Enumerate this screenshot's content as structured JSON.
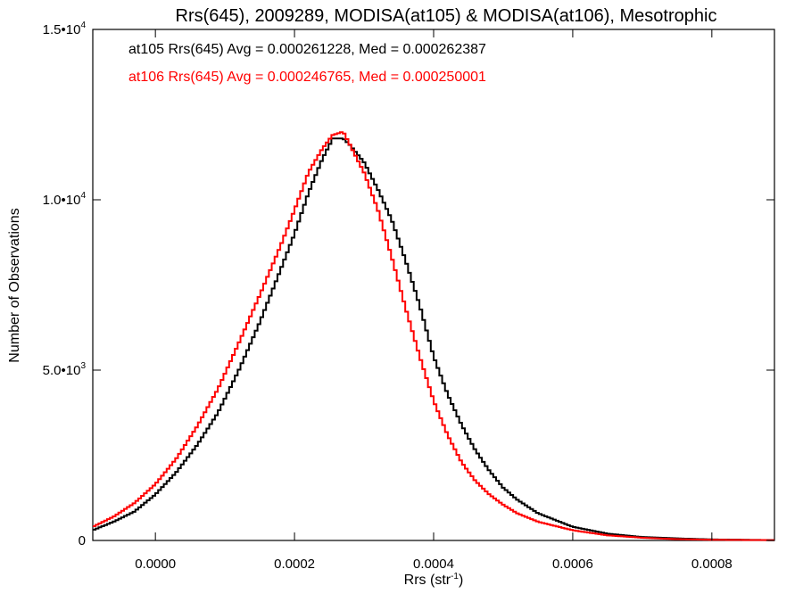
{
  "chart_data": {
    "type": "line",
    "title": "Rrs(645), 2009289, MODISA(at105) & MODISA(at106), Mesotrophic",
    "xlabel": {
      "base": "Rrs (str",
      "sup": "-1",
      "close": ")"
    },
    "ylabel": "Number of Observations",
    "xlim": [
      -9e-05,
      0.00089
    ],
    "ylim": [
      0,
      15000
    ],
    "x_ticks": [
      {
        "value": 0.0,
        "label": "0.0000"
      },
      {
        "value": 0.0002,
        "label": "0.0002"
      },
      {
        "value": 0.0004,
        "label": "0.0004"
      },
      {
        "value": 0.0006,
        "label": "0.0006"
      },
      {
        "value": 0.0008,
        "label": "0.0008"
      }
    ],
    "y_ticks": [
      {
        "value": 0,
        "base": "0",
        "sup": ""
      },
      {
        "value": 5000,
        "base": "5.0•10",
        "sup": "3"
      },
      {
        "value": 10000,
        "base": "1.0•10",
        "sup": "4"
      },
      {
        "value": 15000,
        "base": "1.5•10",
        "sup": "4"
      }
    ],
    "annotations": [
      {
        "text": "at105 Rrs(645) Avg = 0.000261228, Med = 0.000262387",
        "color": "#000000"
      },
      {
        "text": "at106 Rrs(645) Avg = 0.000246765, Med = 0.000250001",
        "color": "#ff0000"
      }
    ],
    "series": [
      {
        "color": "#000000",
        "x": [
          -9e-05,
          -6e-05,
          -3e-05,
          0.0,
          3e-05,
          6e-05,
          9e-05,
          0.00012,
          0.00015,
          0.00018,
          0.0002,
          0.00022,
          0.00024,
          0.000255,
          0.00027,
          0.00028,
          0.0003,
          0.00032,
          0.00034,
          0.00036,
          0.00038,
          0.0004,
          0.00042,
          0.00044,
          0.00046,
          0.00048,
          0.0005,
          0.00052,
          0.00055,
          0.0006,
          0.00065,
          0.0007,
          0.00075,
          0.0008,
          0.00089
        ],
        "y": [
          300,
          550,
          850,
          1350,
          2000,
          2800,
          3750,
          5000,
          6400,
          7950,
          9000,
          10200,
          11200,
          11800,
          11800,
          11600,
          11100,
          10300,
          9400,
          8200,
          6900,
          5400,
          4300,
          3400,
          2650,
          2050,
          1550,
          1200,
          800,
          400,
          200,
          100,
          60,
          30,
          10
        ]
      },
      {
        "color": "#ff0000",
        "x": [
          -9e-05,
          -6e-05,
          -3e-05,
          0.0,
          3e-05,
          6e-05,
          9e-05,
          0.00012,
          0.00015,
          0.00018,
          0.0002,
          0.00022,
          0.00024,
          0.000255,
          0.00027,
          0.00028,
          0.0003,
          0.00032,
          0.00034,
          0.00036,
          0.00038,
          0.0004,
          0.00042,
          0.00044,
          0.00046,
          0.00048,
          0.0005,
          0.00052,
          0.00055,
          0.0006,
          0.00065,
          0.0007,
          0.00075,
          0.0008,
          0.00089
        ],
        "y": [
          400,
          700,
          1100,
          1650,
          2400,
          3350,
          4450,
          5800,
          7200,
          8650,
          9700,
          10800,
          11500,
          11900,
          12000,
          11600,
          10800,
          9700,
          8300,
          6800,
          5400,
          4100,
          3100,
          2300,
          1750,
          1350,
          1050,
          800,
          550,
          300,
          150,
          80,
          40,
          20,
          10
        ]
      }
    ]
  }
}
